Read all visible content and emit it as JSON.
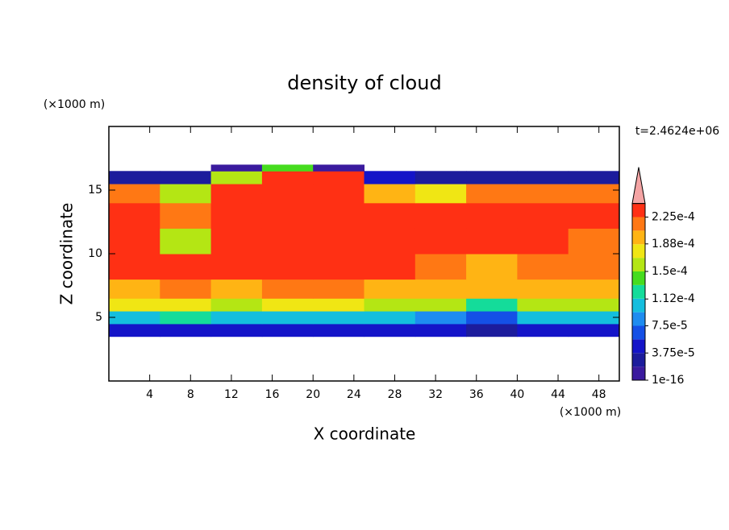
{
  "chart_data": {
    "type": "contour",
    "title": "density of cloud",
    "xlabel": "X coordinate",
    "ylabel": "Z coordinate",
    "x_unit": "(×1000 m)",
    "y_unit": "(×1000 m)",
    "time_label": "t=2.4624e+06",
    "xlim": [
      0,
      50
    ],
    "ylim": [
      0,
      20
    ],
    "xticks": [
      4,
      8,
      12,
      16,
      20,
      24,
      28,
      32,
      36,
      40,
      44,
      48
    ],
    "yticks": [
      5,
      10,
      15
    ],
    "x_edges": [
      0,
      5,
      10,
      15,
      20,
      25,
      30,
      35,
      40,
      45,
      50
    ],
    "z_edges": [
      3.5,
      4.5,
      5.5,
      6.5,
      8,
      10,
      12,
      14,
      15.5,
      16.5,
      17
    ],
    "values": [
      [
        4e-05,
        4e-05,
        4e-05,
        4e-05,
        4e-05,
        4e-05,
        4e-05,
        2e-05,
        4e-05,
        4e-05
      ],
      [
        0.00011,
        0.00012,
        0.00011,
        0.00011,
        0.00011,
        0.00011,
        9e-05,
        6e-05,
        0.0001,
        0.00011
      ],
      [
        0.00017,
        0.00017,
        0.00016,
        0.00017,
        0.00017,
        0.00016,
        0.00015,
        0.00012,
        0.00016,
        0.00016
      ],
      [
        0.0002,
        0.00021,
        0.0002,
        0.00021,
        0.00021,
        0.0002,
        0.0002,
        0.00019,
        0.00019,
        0.00019
      ],
      [
        0.00023,
        0.00023,
        0.00023,
        0.00023,
        0.00023,
        0.00023,
        0.00022,
        0.00019,
        0.00022,
        0.00022
      ],
      [
        0.00023,
        0.00016,
        0.00024,
        0.00024,
        0.00024,
        0.00024,
        0.00024,
        0.00023,
        0.00024,
        0.00022
      ],
      [
        0.00023,
        0.00022,
        0.00024,
        0.00024,
        0.00024,
        0.00024,
        0.00023,
        0.00023,
        0.00023,
        0.00023
      ],
      [
        0.00021,
        0.00016,
        0.00024,
        0.00024,
        0.00023,
        0.0002,
        0.00018,
        0.00022,
        0.00022,
        0.00022
      ],
      [
        3e-05,
        3e-05,
        0.00015,
        0.00023,
        0.00023,
        5e-05,
        3e-05,
        3e-05,
        3e-05,
        3e-05
      ],
      [
        null,
        null,
        1e-05,
        0.00014,
        1e-05,
        null,
        null,
        null,
        null,
        null
      ]
    ],
    "levels": [
      1e-16,
      1.875e-05,
      3.75e-05,
      5.625e-05,
      7.5e-05,
      9.375e-05,
      0.0001125,
      0.00013125,
      0.00015,
      0.00016875,
      0.0001875,
      0.00020625,
      0.000225,
      0.00024375
    ],
    "colors": [
      "#3a1a9e",
      "#1c1c9c",
      "#1414c8",
      "#1450e6",
      "#1e8cf0",
      "#14bede",
      "#14dc9a",
      "#46dc1e",
      "#b4e614",
      "#f0e614",
      "#ffb414",
      "#ff7814",
      "#ff3014"
    ],
    "extend_color": "#f4a4a4",
    "clim": [
      0,
      0.00025
    ],
    "cticks": [
      {
        "value": 1e-16,
        "label": "1e-16"
      },
      {
        "value": 3.75e-05,
        "label": "3.75e-5"
      },
      {
        "value": 7.5e-05,
        "label": "7.5e-5"
      },
      {
        "value": 0.000112,
        "label": "1.12e-4"
      },
      {
        "value": 0.00015,
        "label": "1.5e-4"
      },
      {
        "value": 0.000188,
        "label": "1.88e-4"
      },
      {
        "value": 0.000225,
        "label": "2.25e-4"
      }
    ]
  }
}
